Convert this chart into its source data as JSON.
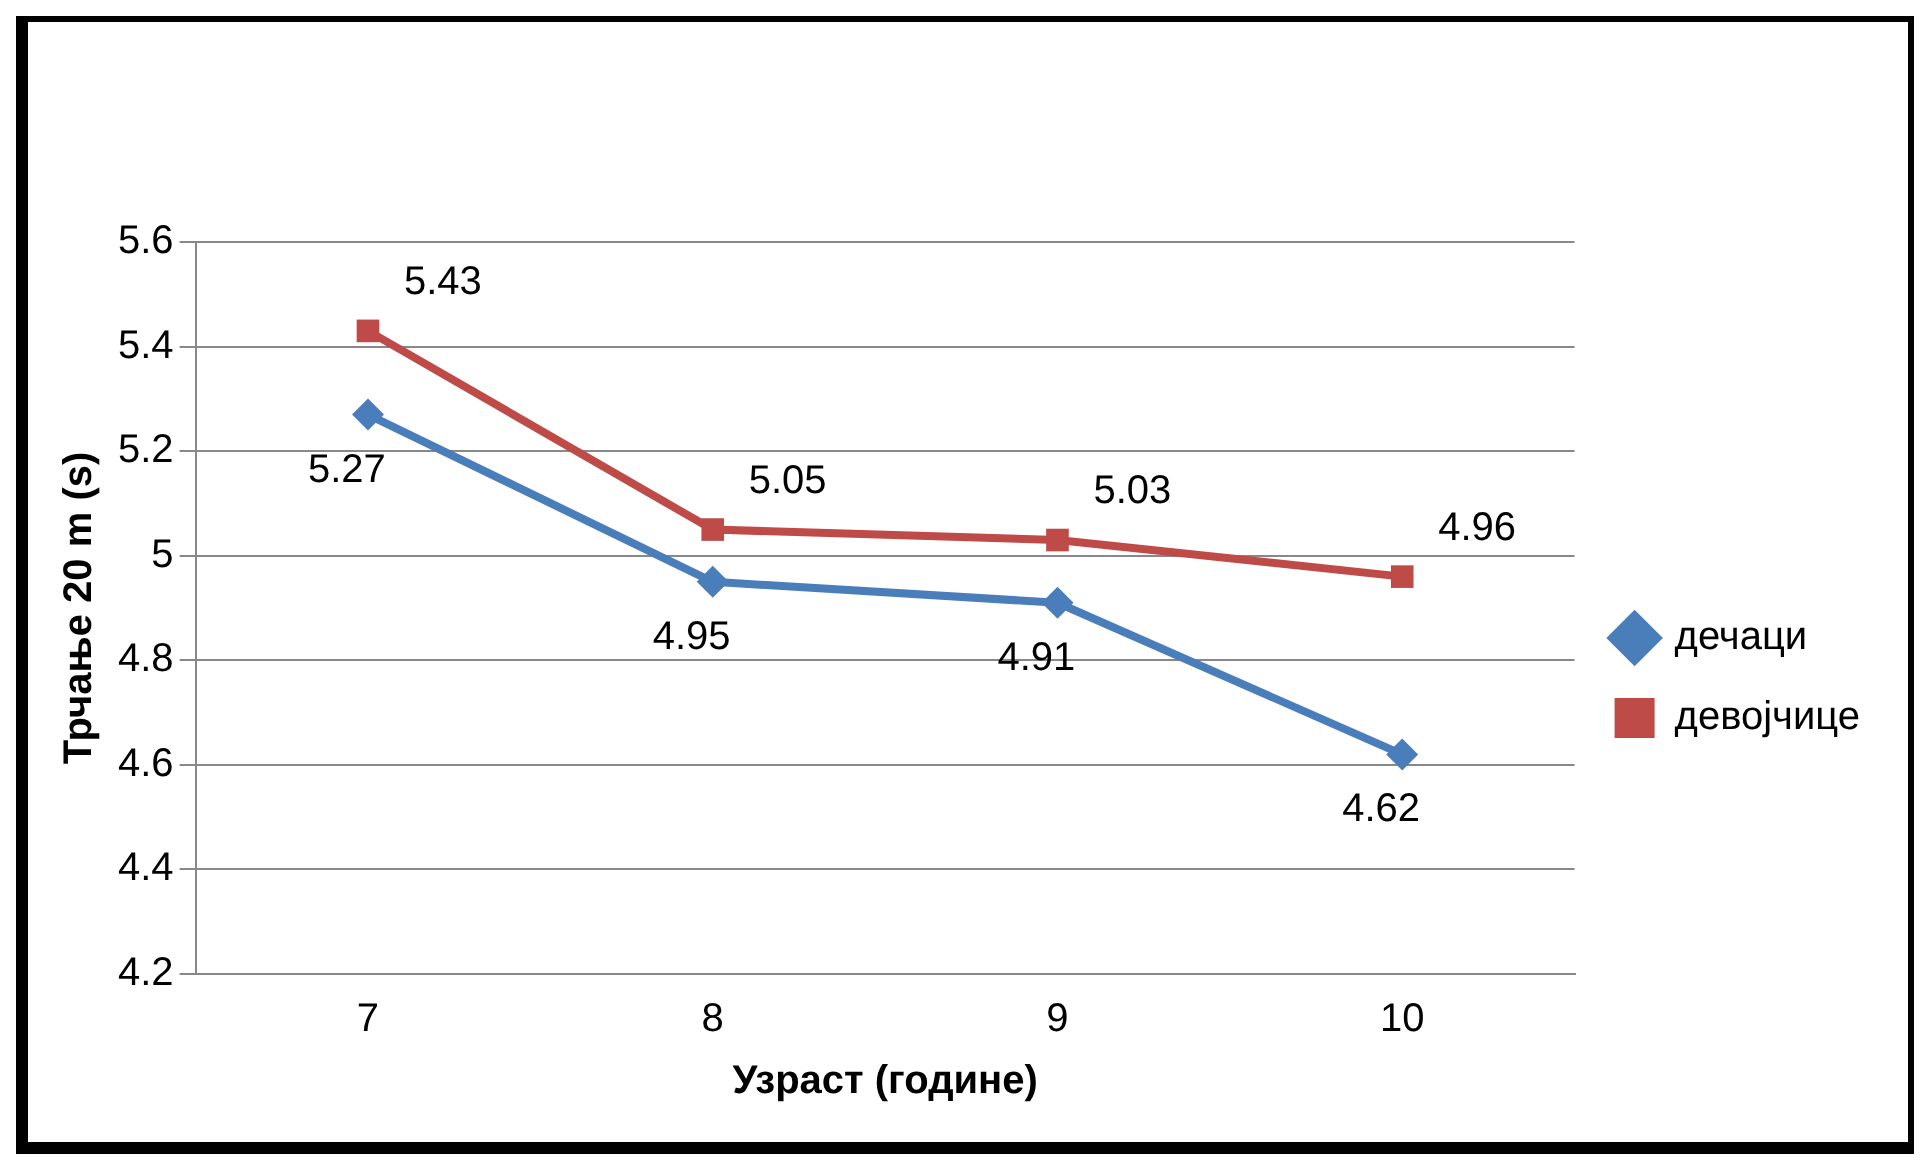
{
  "chart_data": {
    "type": "line",
    "xlabel": "Узраст (године)",
    "ylabel": "Трчање 20 m (s)",
    "categories": [
      "7",
      "8",
      "9",
      "10"
    ],
    "series": [
      {
        "name": "дечаци",
        "color": "#4a7ebb",
        "marker": "diamond",
        "values": [
          5.27,
          4.95,
          4.91,
          4.62
        ]
      },
      {
        "name": "девојчице",
        "color": "#be4b48",
        "marker": "square",
        "values": [
          5.43,
          5.05,
          5.03,
          4.96
        ]
      }
    ],
    "ylim": [
      4.2,
      5.6
    ],
    "yticks": [
      4.2,
      4.4,
      4.6,
      4.8,
      5,
      5.2,
      5.4,
      5.6
    ],
    "grid": "y",
    "legend": "right",
    "data_labels": true,
    "line_style": "solid"
  }
}
